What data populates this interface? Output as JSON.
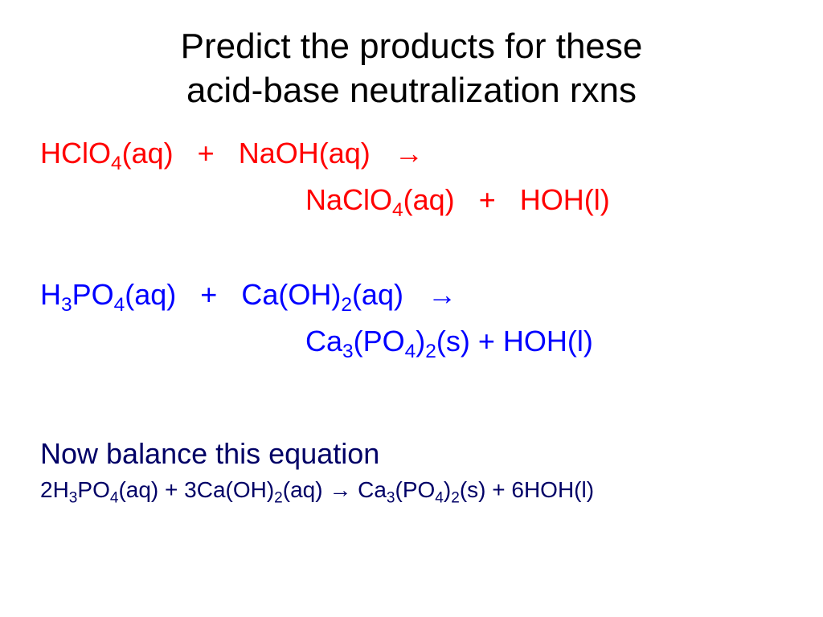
{
  "title_line1": "Predict the products for these",
  "title_line2": "acid-base neutralization rxns",
  "colors": {
    "title": "#000000",
    "eq1": "#ff0000",
    "eq2": "#0000ff",
    "balance": "#000066",
    "background": "#ffffff"
  },
  "typography": {
    "title_fontsize": 44,
    "equation_fontsize": 36,
    "balanced_fontsize": 28,
    "font_family": "Arial"
  },
  "eq1": {
    "reactant1_pre": "HClO",
    "reactant1_sub": "4",
    "reactant1_post": "(aq)",
    "plus": "+",
    "reactant2": "NaOH(aq)",
    "arrow": "→",
    "product1_pre": "NaClO",
    "product1_sub": "4",
    "product1_post": "(aq)",
    "product2": "HOH(l)"
  },
  "eq2": {
    "reactant1_a": "H",
    "reactant1_sub1": "3",
    "reactant1_b": "PO",
    "reactant1_sub2": "4",
    "reactant1_post": "(aq)",
    "plus": "+",
    "reactant2_a": "Ca(OH)",
    "reactant2_sub": "2",
    "reactant2_post": "(aq)",
    "arrow": "→",
    "product1_a": "Ca",
    "product1_sub1": "3",
    "product1_b": "(PO",
    "product1_sub2": "4",
    "product1_c": ")",
    "product1_sub3": "2",
    "product1_post": "(s)",
    "product2": "HOH(l)"
  },
  "balance_label": "Now balance this equation",
  "balanced": {
    "c1": "2H",
    "s1": "3",
    "c2": "PO",
    "s2": "4",
    "c3": "(aq)   +   3Ca(OH)",
    "s3": "2",
    "c4": "(aq) → Ca",
    "s4": "3",
    "c5": "(PO",
    "s5": "4",
    "c6": ")",
    "s6": "2",
    "c7": "(s)   +   6HOH(l)"
  }
}
